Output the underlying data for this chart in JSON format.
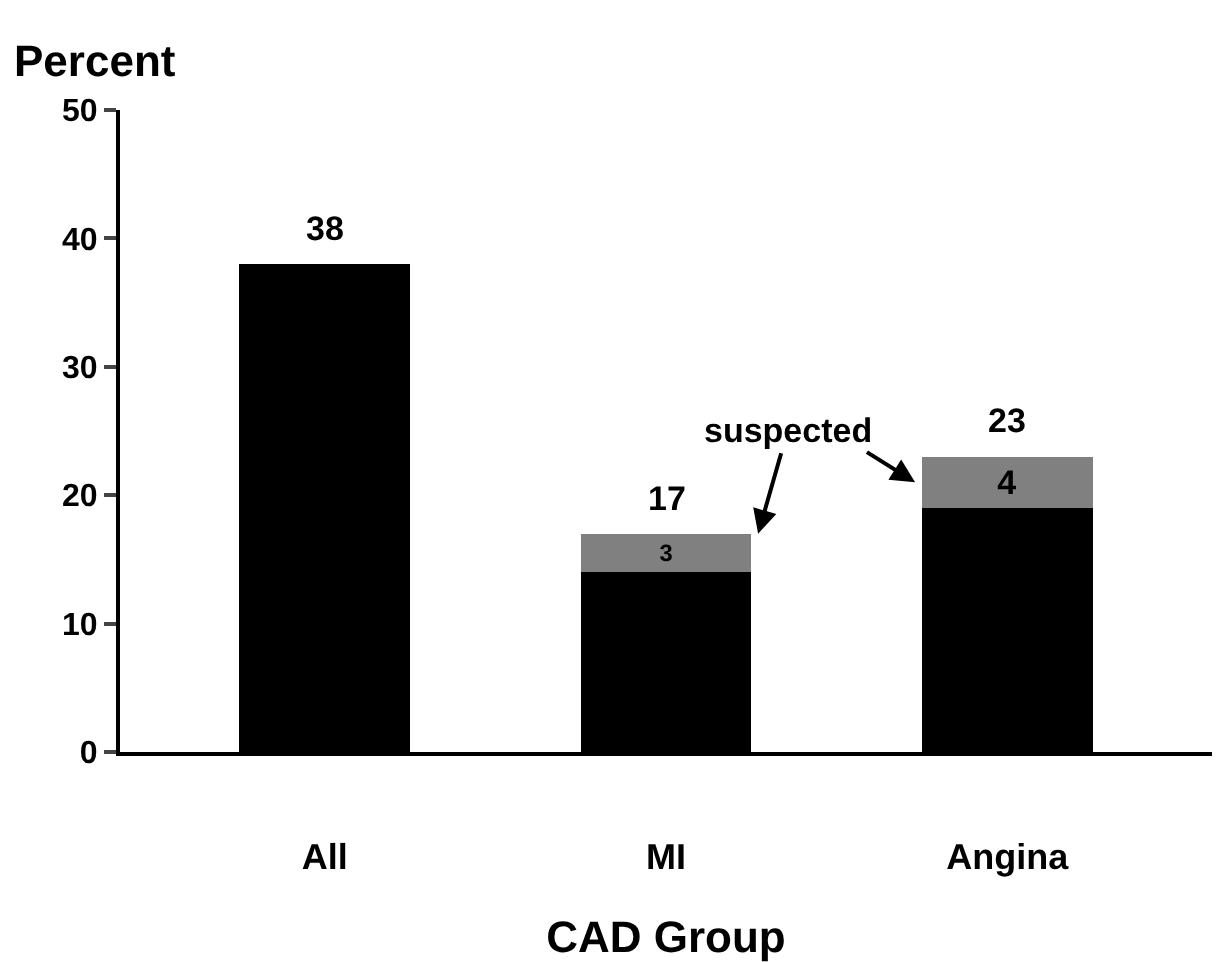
{
  "chart_data": {
    "type": "bar",
    "stacked": true,
    "ylabel": "Percent",
    "xlabel": "CAD Group",
    "categories": [
      "All",
      "MI",
      "Angina"
    ],
    "series": [
      {
        "color": "#000000",
        "values": [
          38,
          14,
          19
        ]
      },
      {
        "color": "#808080",
        "values": [
          null,
          3,
          4
        ],
        "value_labels": [
          null,
          "3",
          "4"
        ]
      }
    ],
    "totals": [
      "38",
      "17",
      "23"
    ],
    "annotations": [
      {
        "text": "suspected",
        "x": "MI",
        "y": 17
      }
    ],
    "ylim": [
      0,
      50
    ],
    "yticks": [
      0,
      10,
      20,
      30,
      40,
      50
    ],
    "grid": false
  }
}
